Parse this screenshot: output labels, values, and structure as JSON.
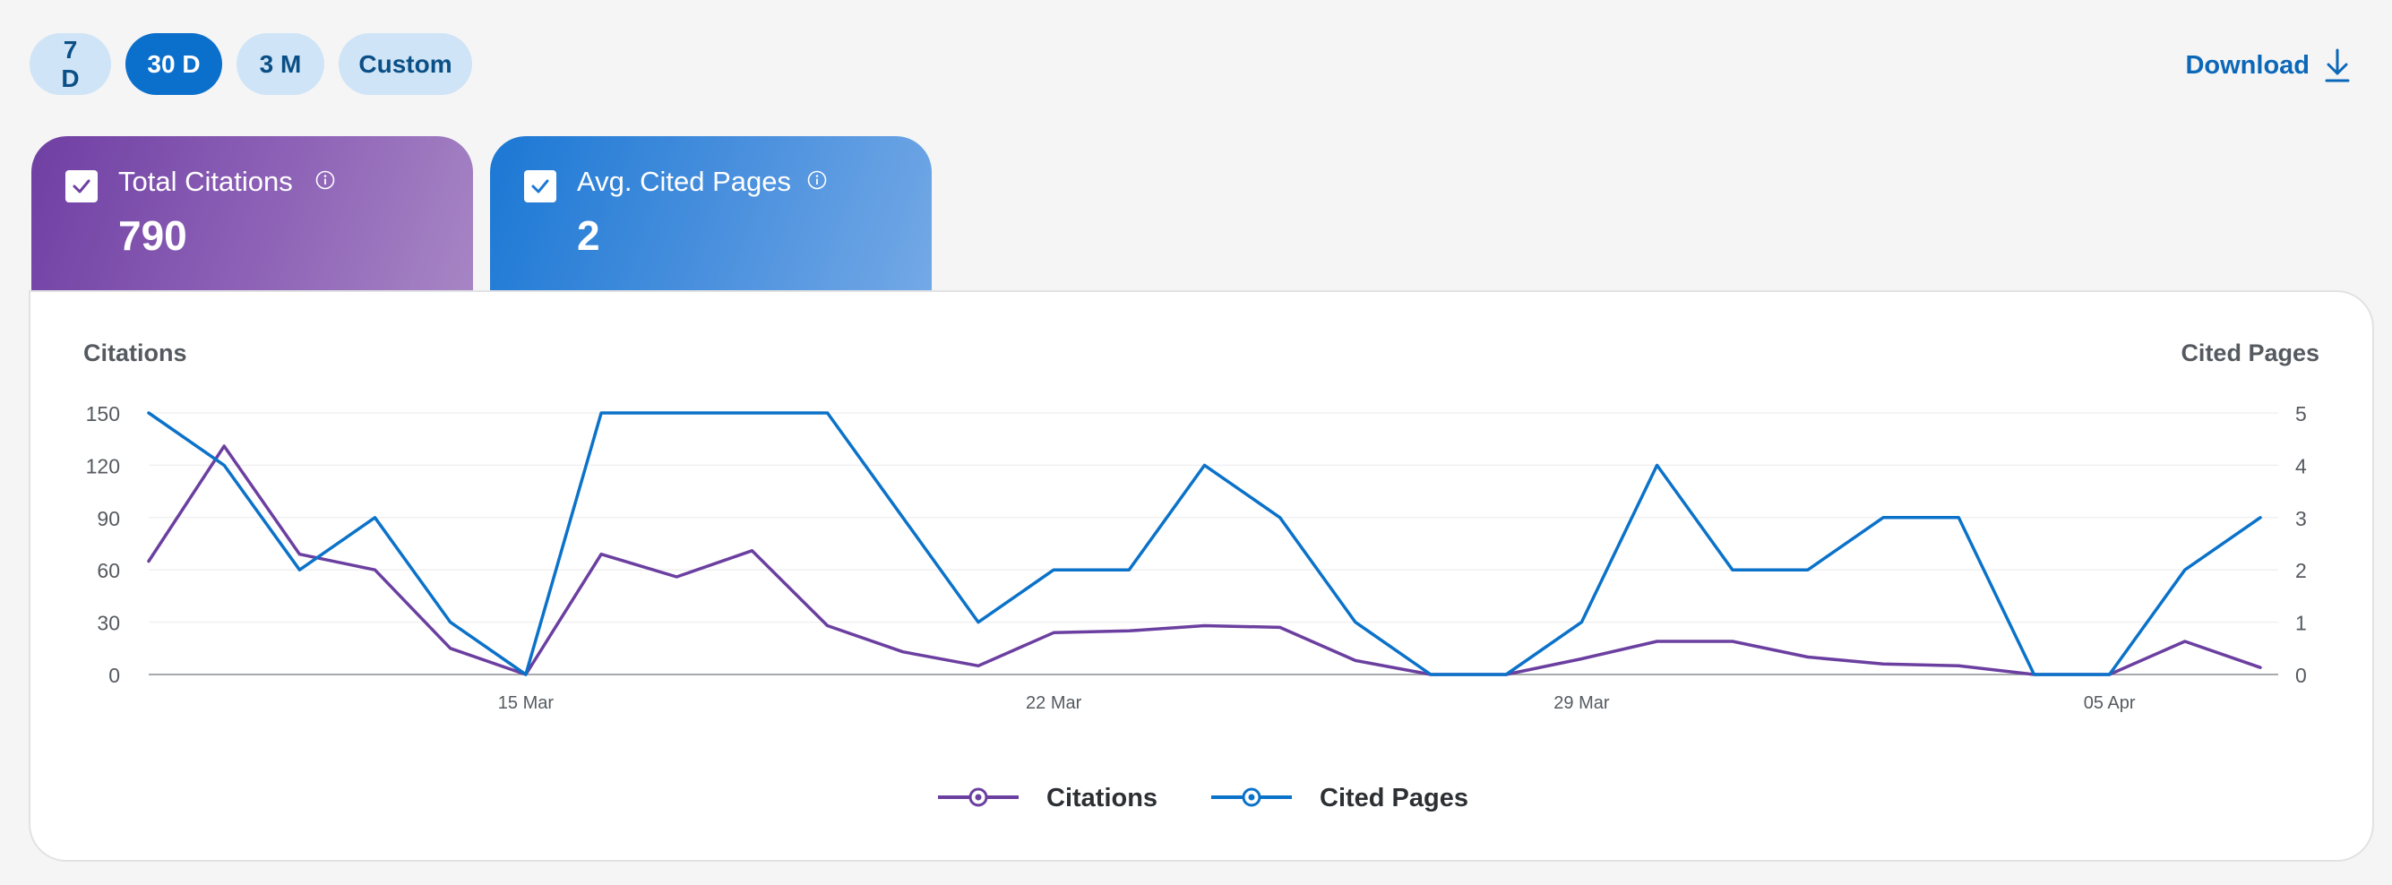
{
  "range_buttons": [
    {
      "label": "7 D",
      "active": false
    },
    {
      "label": "30 D",
      "active": true
    },
    {
      "label": "3 M",
      "active": false
    },
    {
      "label": "Custom",
      "active": false
    }
  ],
  "download": {
    "label": "Download",
    "icon": "download-icon"
  },
  "kpis": [
    {
      "label": "Total Citations",
      "value": "790",
      "checked": true,
      "icon": "info-icon",
      "color": "#6f3fa3"
    },
    {
      "label": "Avg. Cited Pages",
      "value": "2",
      "checked": true,
      "icon": "info-icon",
      "color": "#1b78d4"
    }
  ],
  "chart_data": {
    "type": "line",
    "left_axis_title": "Citations",
    "right_axis_title": "Cited Pages",
    "left_ticks": [
      "0",
      "30",
      "60",
      "90",
      "120",
      "150"
    ],
    "right_ticks": [
      "0",
      "1",
      "2",
      "3",
      "4",
      "5"
    ],
    "ylim_left": [
      0,
      150
    ],
    "ylim_right": [
      0,
      5
    ],
    "x_ticks": [
      {
        "index": 5,
        "label": "15 Mar"
      },
      {
        "index": 12,
        "label": "22 Mar"
      },
      {
        "index": 19,
        "label": "29 Mar"
      },
      {
        "index": 26,
        "label": "05 Apr"
      }
    ],
    "point_count": 29,
    "grid": true,
    "legend_position": "bottom",
    "series": [
      {
        "name": "Citations",
        "axis": "left",
        "color": "#6b3fa0",
        "values": [
          65,
          131,
          69,
          60,
          15,
          0,
          69,
          56,
          71,
          28,
          13,
          5,
          24,
          25,
          28,
          27,
          8,
          0,
          0,
          9,
          19,
          19,
          10,
          6,
          5,
          0,
          0,
          19,
          4
        ]
      },
      {
        "name": "Cited Pages",
        "axis": "right",
        "color": "#0b72c9",
        "values": [
          5,
          4,
          2,
          3,
          1,
          0,
          5,
          5,
          5,
          5,
          3,
          1,
          2,
          2,
          4,
          3,
          1,
          0,
          0,
          1,
          4,
          2,
          2,
          3,
          3,
          0,
          0,
          2,
          3
        ]
      }
    ]
  }
}
